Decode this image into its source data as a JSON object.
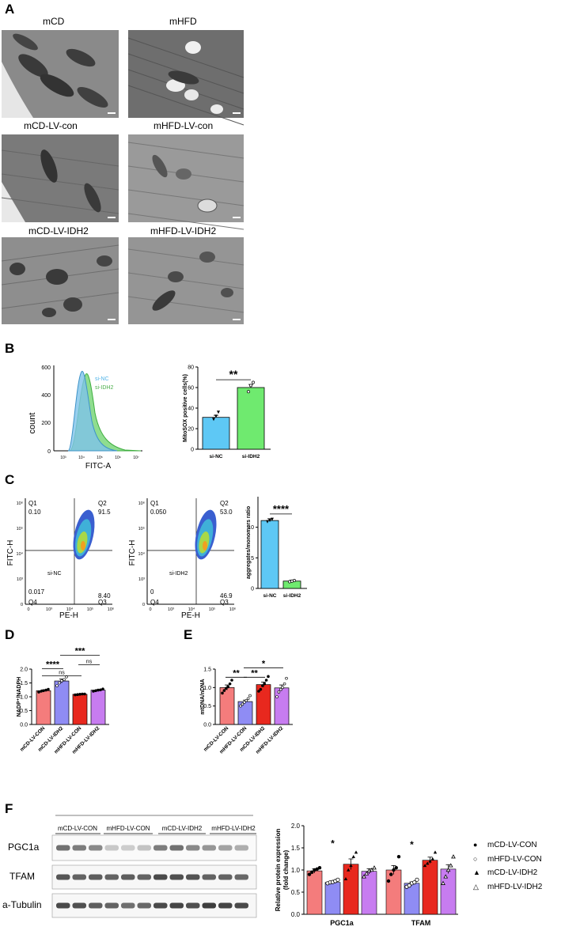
{
  "panels": {
    "A": "A",
    "B": "B",
    "C": "C",
    "D": "D",
    "E": "E",
    "F": "F"
  },
  "panelA": {
    "images": [
      {
        "label": "mCD"
      },
      {
        "label": "mHFD"
      },
      {
        "label": "mCD-LV-con"
      },
      {
        "label": "mHFD-LV-con"
      },
      {
        "label": "mCD-LV-IDH2"
      },
      {
        "label": "mHFD-LV-IDH2"
      }
    ]
  },
  "panelB": {
    "histogram": {
      "xlabel": "FITC-A",
      "ylabel": "count",
      "yticks": [
        "0",
        "200",
        "400",
        "600"
      ],
      "xticks": [
        "10³",
        "10⁴",
        "10⁵",
        "10⁶",
        "10⁷"
      ],
      "legend": [
        {
          "name": "si-NC",
          "color": "#4fb3e8"
        },
        {
          "name": "si-IDH2",
          "color": "#5fcf5f"
        }
      ]
    },
    "chart_data": {
      "type": "bar",
      "categories": [
        "si-NC",
        "si-IDH2"
      ],
      "values": [
        31,
        60
      ],
      "points": [
        [
          29,
          32,
          36
        ],
        [
          56,
          62,
          65
        ]
      ],
      "errors": [
        2,
        3
      ],
      "ylabel": "MitoSOX positive cells(%)",
      "ylim": [
        0,
        80
      ],
      "yticks": [
        0,
        20,
        40,
        60,
        80
      ],
      "significance": "**",
      "colors": [
        "#5ec8f5",
        "#6fea6f"
      ]
    }
  },
  "panelC": {
    "flow": [
      {
        "sample": "si-NC",
        "q1": "0.10",
        "q2": "91.5",
        "q3": "8.40",
        "q4": "0.017"
      },
      {
        "sample": "si-IDH2",
        "q1": "0.050",
        "q2": "53.0",
        "q3": "46.9",
        "q4": "0"
      }
    ],
    "quadrants": {
      "q1": "Q1",
      "q2": "Q2",
      "q3": "Q3",
      "q4": "Q4"
    },
    "xlabel": "PE-H",
    "ylabel": "FITC-H",
    "yticks": [
      "0",
      "10³",
      "10⁴",
      "10⁵",
      "10⁶"
    ],
    "xticks": [
      "0",
      "10³",
      "10⁴",
      "10⁵",
      "10⁶"
    ],
    "chart_data": {
      "type": "bar",
      "categories": [
        "si-NC",
        "si-IDH2"
      ],
      "values": [
        11.1,
        1.2
      ],
      "points": [
        [
          10.9,
          11.1,
          11.3
        ],
        [
          1.1,
          1.2,
          1.3
        ]
      ],
      "errors": [
        0.3,
        0.15
      ],
      "ylabel": "aggregates/monomers ratio",
      "ylim": [
        0,
        15
      ],
      "yticks": [
        0,
        5,
        10
      ],
      "significance": "****",
      "colors": [
        "#5ec8f5",
        "#6fea6f"
      ]
    }
  },
  "panelD": {
    "chart_data": {
      "type": "bar",
      "categories": [
        "mCD-LV-CON",
        "mCD-LV-IDH2",
        "mHFD-LV-CON",
        "mHFD-LV-IDH2"
      ],
      "values": [
        1.22,
        1.57,
        1.09,
        1.24
      ],
      "errors": [
        0.03,
        0.07,
        0.01,
        0.02
      ],
      "points": [
        [
          1.17,
          1.2,
          1.22,
          1.24,
          1.27
        ],
        [
          1.4,
          1.5,
          1.58,
          1.62,
          1.72
        ],
        [
          1.07,
          1.08,
          1.09,
          1.1,
          1.1
        ],
        [
          1.2,
          1.22,
          1.24,
          1.25,
          1.28
        ]
      ],
      "ylabel": "NADP⁺/NADPH",
      "ylim": [
        0,
        2.0
      ],
      "yticks": [
        "0.0",
        "0.5",
        "1.0",
        "1.5",
        "2.0"
      ],
      "colors": [
        "#f47c7c",
        "#8f8cf4",
        "#e8281e",
        "#c77cf0"
      ],
      "comparisons": [
        {
          "from": 0,
          "to": 1,
          "label": "****"
        },
        {
          "from": 0,
          "to": 2,
          "label": "ns"
        },
        {
          "from": 2,
          "to": 3,
          "label": "ns"
        },
        {
          "from": 1,
          "to": 3,
          "label": "***"
        }
      ]
    }
  },
  "panelE": {
    "chart_data": {
      "type": "bar",
      "categories": [
        "mCD-LV-CON",
        "mHFD-LV-CON",
        "mCD-LV-IDH2",
        "mHFD-LV-IDH2"
      ],
      "values": [
        1.0,
        0.62,
        1.08,
        0.99
      ],
      "errors": [
        0.07,
        0.04,
        0.07,
        0.08
      ],
      "points": [
        [
          0.85,
          0.92,
          0.98,
          1.02,
          1.1,
          1.2
        ],
        [
          0.5,
          0.55,
          0.6,
          0.65,
          0.7,
          0.78
        ],
        [
          0.9,
          0.95,
          1.05,
          1.1,
          1.2,
          1.3
        ],
        [
          0.75,
          0.88,
          0.95,
          1.0,
          1.1,
          1.25
        ]
      ],
      "point_style": [
        "filled",
        "open",
        "filled",
        "open"
      ],
      "ylabel": "mtDNA/nDNA",
      "ylim": [
        0,
        1.5
      ],
      "yticks": [
        "0.0",
        "0.5",
        "1.0",
        "1.5"
      ],
      "colors": [
        "#f47c7c",
        "#8f8cf4",
        "#e8281e",
        "#c77cf0"
      ],
      "comparisons": [
        {
          "from": 0,
          "to": 1,
          "label": "**"
        },
        {
          "from": 1,
          "to": 2,
          "label": "**"
        },
        {
          "from": 1,
          "to": 3,
          "label": "*"
        }
      ]
    }
  },
  "panelF": {
    "blot": {
      "groups": [
        "mCD-LV-CON",
        "mHFD-LV-CON",
        "mCD-LV-IDH2",
        "mHFD-LV-IDH2"
      ],
      "rows": [
        "PGC1a",
        "TFAM",
        "a-Tubulin"
      ]
    },
    "chart_data": {
      "type": "bar",
      "categories": [
        "PGC1a",
        "TFAM"
      ],
      "series": [
        {
          "name": "mCD-LV-CON",
          "values": [
            0.98,
            1.0
          ],
          "errors": [
            0.05,
            0.1
          ],
          "marker": "filled-circle"
        },
        {
          "name": "mHFD-LV-CON",
          "values": [
            0.72,
            0.7
          ],
          "errors": [
            0.03,
            0.03
          ],
          "marker": "open-circle"
        },
        {
          "name": "mCD-LV-IDH2",
          "values": [
            1.13,
            1.22
          ],
          "errors": [
            0.12,
            0.07
          ],
          "marker": "filled-triangle"
        },
        {
          "name": "mHFD-LV-IDH2",
          "values": [
            0.97,
            1.02
          ],
          "errors": [
            0.06,
            0.1
          ],
          "marker": "open-triangle"
        }
      ],
      "points": [
        [
          [
            0.9,
            0.95,
            1.0,
            1.02,
            1.05
          ],
          [
            0.7,
            0.72,
            0.73,
            0.75,
            0.78
          ],
          [
            0.8,
            1.0,
            1.1,
            1.3,
            1.4
          ],
          [
            0.85,
            0.92,
            0.98,
            1.0,
            1.05
          ]
        ],
        [
          [
            0.75,
            0.9,
            1.0,
            1.05,
            1.3
          ],
          [
            0.62,
            0.65,
            0.7,
            0.72,
            0.78
          ],
          [
            1.1,
            1.15,
            1.2,
            1.25,
            1.4
          ],
          [
            0.7,
            0.85,
            1.0,
            1.1,
            1.3
          ]
        ]
      ],
      "significance": [
        "*",
        "*"
      ],
      "ylabel": "Relative protein expression (fold change)",
      "ylim": [
        0,
        2.0
      ],
      "yticks": [
        "0.0",
        "0.5",
        "1.0",
        "1.5",
        "2.0"
      ],
      "colors": [
        "#f47c7c",
        "#8f8cf4",
        "#e8281e",
        "#c77cf0"
      ]
    }
  }
}
